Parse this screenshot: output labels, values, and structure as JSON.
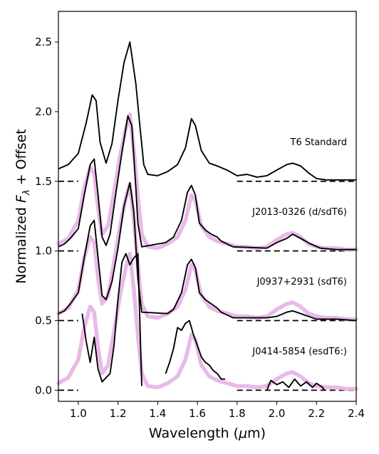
{
  "chart_data": {
    "type": "line",
    "title": "",
    "xlabel_parts": [
      "Wavelength (",
      "μ",
      "m)"
    ],
    "ylabel_parts": [
      "Normalized ",
      "F",
      "λ",
      " + Offset"
    ],
    "xlim": [
      0.9,
      2.4
    ],
    "ylim": [
      -0.08,
      2.72
    ],
    "xticks": [
      1.0,
      1.2,
      1.4,
      1.6,
      1.8,
      2.0,
      2.2,
      2.4
    ],
    "xtick_labels": [
      "1.0",
      "1.2",
      "1.4",
      "1.6",
      "1.8",
      "2.0",
      "2.2",
      "2.4"
    ],
    "yticks": [
      0.0,
      0.5,
      1.0,
      1.5,
      2.0,
      2.5
    ],
    "ytick_labels": [
      "0.0",
      "0.5",
      "1.0",
      "1.5",
      "2.0",
      "2.5"
    ],
    "grid": false,
    "colors": {
      "observed": "#000000",
      "template": "#e6b3e6"
    },
    "spectra": [
      {
        "label": "T6 Standard",
        "offset": 1.5,
        "observed": [
          [
            0.9,
            0.09
          ],
          [
            0.95,
            0.12
          ],
          [
            1.0,
            0.2
          ],
          [
            1.04,
            0.42
          ],
          [
            1.07,
            0.62
          ],
          [
            1.09,
            0.58
          ],
          [
            1.11,
            0.28
          ],
          [
            1.14,
            0.13
          ],
          [
            1.17,
            0.27
          ],
          [
            1.2,
            0.58
          ],
          [
            1.23,
            0.85
          ],
          [
            1.26,
            1.0
          ],
          [
            1.29,
            0.7
          ],
          [
            1.31,
            0.4
          ],
          [
            1.33,
            0.12
          ],
          [
            1.35,
            0.05
          ],
          [
            1.4,
            0.04
          ],
          [
            1.45,
            0.07
          ],
          [
            1.5,
            0.12
          ],
          [
            1.54,
            0.24
          ],
          [
            1.57,
            0.45
          ],
          [
            1.59,
            0.4
          ],
          [
            1.62,
            0.22
          ],
          [
            1.66,
            0.13
          ],
          [
            1.7,
            0.11
          ],
          [
            1.75,
            0.08
          ],
          [
            1.8,
            0.04
          ],
          [
            1.85,
            0.05
          ],
          [
            1.9,
            0.03
          ],
          [
            1.95,
            0.04
          ],
          [
            2.0,
            0.08
          ],
          [
            2.05,
            0.12
          ],
          [
            2.08,
            0.13
          ],
          [
            2.12,
            0.11
          ],
          [
            2.16,
            0.06
          ],
          [
            2.2,
            0.02
          ],
          [
            2.25,
            0.01
          ],
          [
            2.3,
            0.01
          ],
          [
            2.35,
            0.01
          ],
          [
            2.4,
            0.01
          ]
        ]
      },
      {
        "label": "J2013-0326 (d/sdT6)",
        "offset": 1.0,
        "observed": [
          [
            0.9,
            0.03
          ],
          [
            0.93,
            0.05
          ],
          [
            0.96,
            0.09
          ],
          [
            1.0,
            0.16
          ],
          [
            1.03,
            0.4
          ],
          [
            1.06,
            0.62
          ],
          [
            1.08,
            0.66
          ],
          [
            1.1,
            0.4
          ],
          [
            1.12,
            0.1
          ],
          [
            1.14,
            0.04
          ],
          [
            1.16,
            0.12
          ],
          [
            1.19,
            0.42
          ],
          [
            1.22,
            0.71
          ],
          [
            1.25,
            0.97
          ],
          [
            1.27,
            0.9
          ],
          [
            1.29,
            0.45
          ],
          [
            1.3,
            0.2
          ],
          [
            1.32,
            0.03
          ],
          [
            1.44,
            0.06
          ],
          [
            1.48,
            0.1
          ],
          [
            1.52,
            0.22
          ],
          [
            1.55,
            0.42
          ],
          [
            1.57,
            0.47
          ],
          [
            1.59,
            0.4
          ],
          [
            1.61,
            0.2
          ],
          [
            1.64,
            0.15
          ],
          [
            1.67,
            0.12
          ],
          [
            1.7,
            0.1
          ],
          [
            1.72,
            0.07
          ],
          [
            1.75,
            0.05
          ],
          [
            1.78,
            0.03
          ],
          [
            1.95,
            0.02
          ],
          [
            2.0,
            0.06
          ],
          [
            2.05,
            0.09
          ],
          [
            2.08,
            0.12
          ],
          [
            2.12,
            0.09
          ],
          [
            2.17,
            0.05
          ],
          [
            2.22,
            0.02
          ],
          [
            2.3,
            0.01
          ],
          [
            2.4,
            0.01
          ]
        ],
        "template": [
          [
            0.9,
            0.05
          ],
          [
            0.95,
            0.09
          ],
          [
            1.0,
            0.22
          ],
          [
            1.03,
            0.45
          ],
          [
            1.06,
            0.6
          ],
          [
            1.08,
            0.56
          ],
          [
            1.1,
            0.3
          ],
          [
            1.12,
            0.12
          ],
          [
            1.15,
            0.18
          ],
          [
            1.18,
            0.42
          ],
          [
            1.21,
            0.68
          ],
          [
            1.24,
            0.88
          ],
          [
            1.26,
            0.98
          ],
          [
            1.28,
            0.72
          ],
          [
            1.3,
            0.4
          ],
          [
            1.32,
            0.12
          ],
          [
            1.35,
            0.03
          ],
          [
            1.4,
            0.02
          ],
          [
            1.45,
            0.05
          ],
          [
            1.5,
            0.1
          ],
          [
            1.54,
            0.22
          ],
          [
            1.57,
            0.4
          ],
          [
            1.59,
            0.36
          ],
          [
            1.62,
            0.18
          ],
          [
            1.66,
            0.1
          ],
          [
            1.7,
            0.07
          ],
          [
            1.75,
            0.05
          ],
          [
            1.8,
            0.03
          ],
          [
            1.85,
            0.03
          ],
          [
            1.9,
            0.02
          ],
          [
            1.95,
            0.03
          ],
          [
            2.0,
            0.08
          ],
          [
            2.05,
            0.12
          ],
          [
            2.08,
            0.13
          ],
          [
            2.12,
            0.1
          ],
          [
            2.16,
            0.05
          ],
          [
            2.2,
            0.03
          ],
          [
            2.25,
            0.02
          ],
          [
            2.3,
            0.02
          ],
          [
            2.35,
            0.01
          ],
          [
            2.4,
            0.01
          ]
        ]
      },
      {
        "label": "J0937+2931 (sdT6)",
        "offset": 0.5,
        "observed": [
          [
            0.9,
            0.05
          ],
          [
            0.93,
            0.07
          ],
          [
            0.96,
            0.12
          ],
          [
            1.0,
            0.2
          ],
          [
            1.03,
            0.45
          ],
          [
            1.06,
            0.68
          ],
          [
            1.08,
            0.72
          ],
          [
            1.1,
            0.45
          ],
          [
            1.12,
            0.18
          ],
          [
            1.14,
            0.15
          ],
          [
            1.17,
            0.28
          ],
          [
            1.2,
            0.52
          ],
          [
            1.23,
            0.82
          ],
          [
            1.26,
            0.99
          ],
          [
            1.28,
            0.78
          ],
          [
            1.3,
            0.3
          ],
          [
            1.32,
            0.06
          ],
          [
            1.45,
            0.05
          ],
          [
            1.48,
            0.08
          ],
          [
            1.52,
            0.2
          ],
          [
            1.55,
            0.4
          ],
          [
            1.57,
            0.44
          ],
          [
            1.59,
            0.38
          ],
          [
            1.61,
            0.2
          ],
          [
            1.64,
            0.15
          ],
          [
            1.67,
            0.12
          ],
          [
            1.7,
            0.09
          ],
          [
            1.72,
            0.06
          ],
          [
            1.75,
            0.04
          ],
          [
            1.78,
            0.02
          ],
          [
            1.95,
            0.02
          ],
          [
            2.0,
            0.03
          ],
          [
            2.05,
            0.06
          ],
          [
            2.08,
            0.07
          ],
          [
            2.12,
            0.05
          ],
          [
            2.16,
            0.03
          ],
          [
            2.2,
            0.01
          ],
          [
            2.3,
            0.01
          ],
          [
            2.4,
            0.0
          ]
        ],
        "template": [
          [
            0.9,
            0.05
          ],
          [
            0.95,
            0.09
          ],
          [
            1.0,
            0.22
          ],
          [
            1.03,
            0.45
          ],
          [
            1.06,
            0.6
          ],
          [
            1.08,
            0.56
          ],
          [
            1.1,
            0.3
          ],
          [
            1.12,
            0.12
          ],
          [
            1.15,
            0.18
          ],
          [
            1.18,
            0.42
          ],
          [
            1.21,
            0.68
          ],
          [
            1.24,
            0.88
          ],
          [
            1.26,
            0.98
          ],
          [
            1.28,
            0.72
          ],
          [
            1.3,
            0.4
          ],
          [
            1.32,
            0.12
          ],
          [
            1.35,
            0.03
          ],
          [
            1.4,
            0.02
          ],
          [
            1.45,
            0.05
          ],
          [
            1.5,
            0.1
          ],
          [
            1.54,
            0.22
          ],
          [
            1.57,
            0.4
          ],
          [
            1.59,
            0.36
          ],
          [
            1.62,
            0.18
          ],
          [
            1.66,
            0.1
          ],
          [
            1.7,
            0.07
          ],
          [
            1.75,
            0.05
          ],
          [
            1.8,
            0.03
          ],
          [
            1.85,
            0.03
          ],
          [
            1.9,
            0.02
          ],
          [
            1.95,
            0.03
          ],
          [
            2.0,
            0.08
          ],
          [
            2.05,
            0.12
          ],
          [
            2.08,
            0.13
          ],
          [
            2.12,
            0.1
          ],
          [
            2.16,
            0.05
          ],
          [
            2.2,
            0.03
          ],
          [
            2.25,
            0.02
          ],
          [
            2.3,
            0.02
          ],
          [
            2.35,
            0.01
          ],
          [
            2.4,
            0.01
          ]
        ]
      },
      {
        "label": "J0414-5854 (esdT6:)",
        "offset": 0.0,
        "observed_segments": [
          [
            [
              1.02,
              0.55
            ],
            [
              1.04,
              0.35
            ],
            [
              1.06,
              0.2
            ],
            [
              1.08,
              0.38
            ],
            [
              1.1,
              0.15
            ],
            [
              1.12,
              0.06
            ],
            [
              1.14,
              0.09
            ],
            [
              1.16,
              0.12
            ],
            [
              1.18,
              0.32
            ],
            [
              1.2,
              0.65
            ],
            [
              1.22,
              0.92
            ],
            [
              1.24,
              0.98
            ],
            [
              1.26,
              0.9
            ],
            [
              1.28,
              0.95
            ],
            [
              1.3,
              0.98
            ],
            [
              1.32,
              0.03
            ]
          ],
          [
            [
              1.44,
              0.12
            ],
            [
              1.46,
              0.2
            ],
            [
              1.48,
              0.3
            ],
            [
              1.5,
              0.45
            ],
            [
              1.52,
              0.43
            ],
            [
              1.54,
              0.48
            ],
            [
              1.56,
              0.5
            ],
            [
              1.58,
              0.4
            ],
            [
              1.6,
              0.32
            ],
            [
              1.62,
              0.24
            ],
            [
              1.64,
              0.2
            ],
            [
              1.66,
              0.18
            ],
            [
              1.68,
              0.14
            ],
            [
              1.7,
              0.12
            ],
            [
              1.72,
              0.08
            ],
            [
              1.74,
              0.08
            ]
          ],
          [
            [
              1.95,
              0.0
            ],
            [
              1.97,
              0.07
            ],
            [
              2.0,
              0.04
            ],
            [
              2.03,
              0.06
            ],
            [
              2.06,
              0.02
            ],
            [
              2.09,
              0.08
            ],
            [
              2.12,
              0.03
            ],
            [
              2.15,
              0.06
            ],
            [
              2.18,
              0.02
            ],
            [
              2.2,
              0.05
            ],
            [
              2.23,
              0.02
            ],
            [
              2.24,
              0.0
            ]
          ]
        ],
        "template": [
          [
            0.9,
            0.05
          ],
          [
            0.95,
            0.09
          ],
          [
            1.0,
            0.22
          ],
          [
            1.03,
            0.45
          ],
          [
            1.06,
            0.6
          ],
          [
            1.08,
            0.56
          ],
          [
            1.1,
            0.3
          ],
          [
            1.12,
            0.12
          ],
          [
            1.15,
            0.18
          ],
          [
            1.18,
            0.42
          ],
          [
            1.21,
            0.68
          ],
          [
            1.24,
            0.88
          ],
          [
            1.26,
            0.98
          ],
          [
            1.28,
            0.72
          ],
          [
            1.3,
            0.4
          ],
          [
            1.32,
            0.12
          ],
          [
            1.35,
            0.03
          ],
          [
            1.4,
            0.02
          ],
          [
            1.45,
            0.05
          ],
          [
            1.5,
            0.1
          ],
          [
            1.54,
            0.22
          ],
          [
            1.57,
            0.4
          ],
          [
            1.59,
            0.36
          ],
          [
            1.62,
            0.18
          ],
          [
            1.66,
            0.1
          ],
          [
            1.7,
            0.07
          ],
          [
            1.75,
            0.05
          ],
          [
            1.8,
            0.03
          ],
          [
            1.85,
            0.03
          ],
          [
            1.9,
            0.02
          ],
          [
            1.95,
            0.03
          ],
          [
            2.0,
            0.08
          ],
          [
            2.05,
            0.12
          ],
          [
            2.08,
            0.13
          ],
          [
            2.12,
            0.1
          ],
          [
            2.16,
            0.05
          ],
          [
            2.2,
            0.03
          ],
          [
            2.25,
            0.02
          ],
          [
            2.3,
            0.02
          ],
          [
            2.35,
            0.01
          ],
          [
            2.4,
            0.01
          ]
        ]
      }
    ],
    "baselines": [
      {
        "y": 1.5,
        "segments": [
          [
            0.9,
            1.0
          ],
          [
            1.8,
            2.4
          ]
        ]
      },
      {
        "y": 1.0,
        "segments": [
          [
            0.9,
            1.0
          ],
          [
            1.8,
            2.4
          ]
        ]
      },
      {
        "y": 0.5,
        "segments": [
          [
            0.9,
            1.0
          ],
          [
            1.8,
            2.4
          ]
        ]
      },
      {
        "y": 0.0,
        "segments": [
          [
            0.9,
            1.0
          ],
          [
            1.8,
            2.4
          ]
        ]
      }
    ]
  }
}
